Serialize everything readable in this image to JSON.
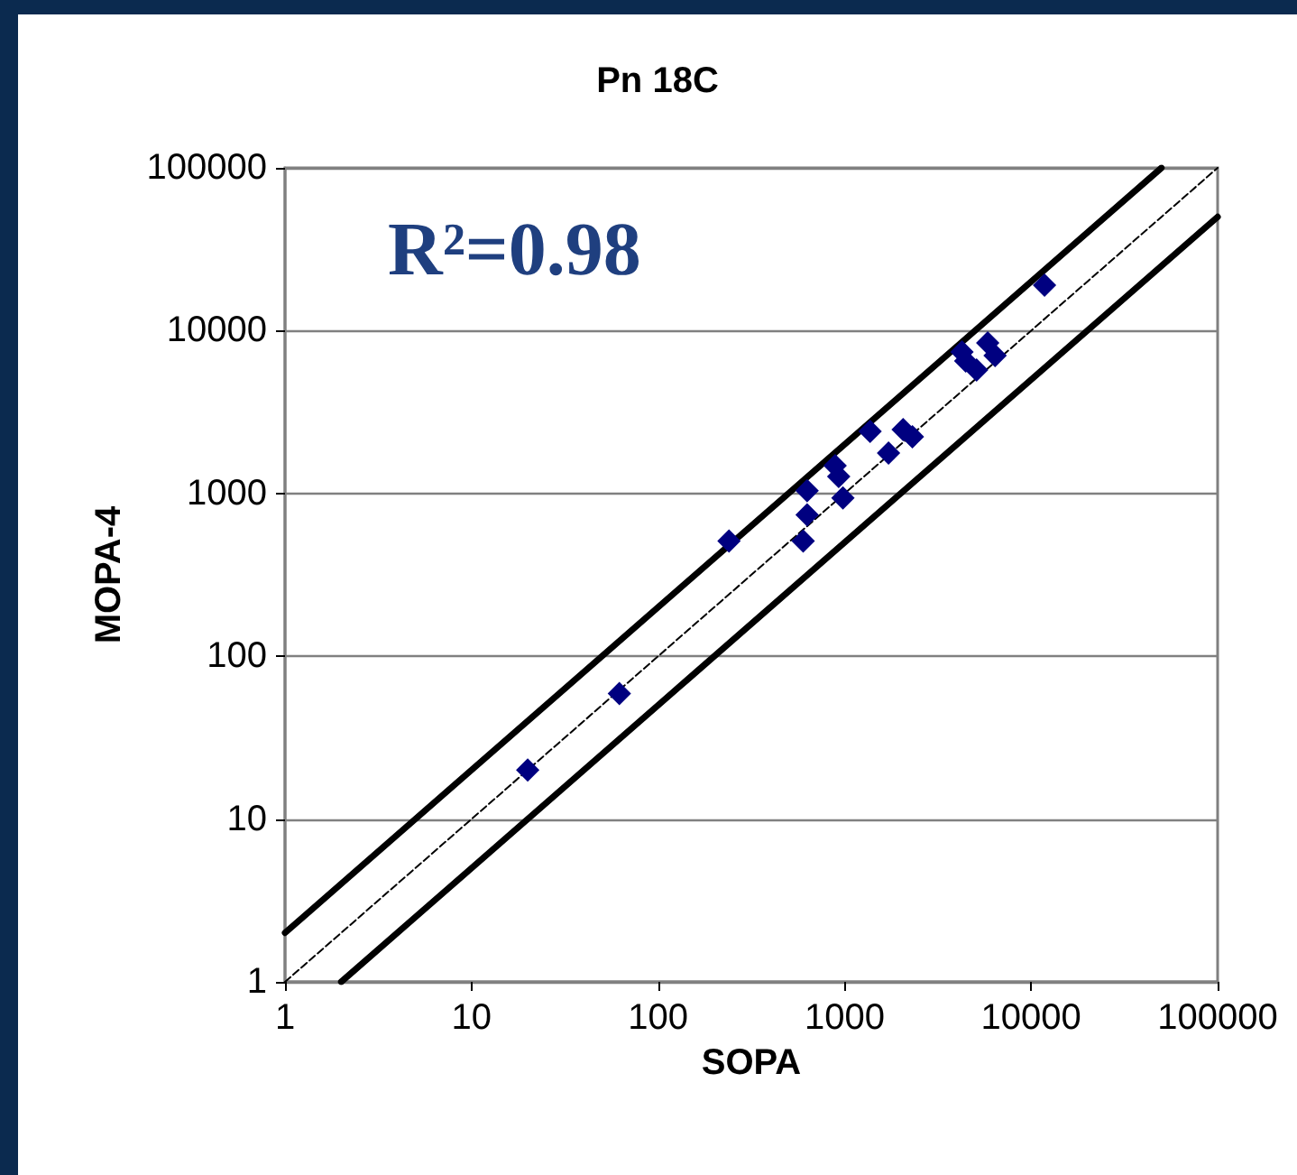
{
  "chart_data": {
    "type": "scatter",
    "title": "Pn 18C",
    "xlabel": "SOPA",
    "ylabel": "MOPA-4",
    "annotations": [
      "R²=0.98"
    ],
    "log": "xy",
    "grid": "y",
    "marker": "diamond",
    "xlim": [
      1,
      100000
    ],
    "xticks": [
      1,
      10,
      100,
      1000,
      10000,
      100000
    ],
    "ylim": [
      1,
      100000
    ],
    "yticks": [
      1,
      10,
      100,
      1000,
      10000,
      100000
    ],
    "series": [
      {
        "color": "#000080",
        "x": [
          20,
          62,
          240,
          630,
          630,
          600,
          890,
          930,
          980,
          1370,
          1720,
          2060,
          2310,
          4260,
          4460,
          5100,
          5850,
          6410,
          11800
        ],
        "values": [
          20,
          59,
          510,
          1040,
          740,
          510,
          1480,
          1270,
          940,
          2410,
          1770,
          2470,
          2230,
          7400,
          6510,
          5730,
          8410,
          7030,
          19000
        ]
      },
      {
        "type": "line",
        "color": "#000000",
        "marker": "none",
        "line_style": "solid",
        "x": [
          1,
          50000
        ],
        "values": [
          2,
          100000
        ]
      },
      {
        "type": "line",
        "color": "#000000",
        "marker": "none",
        "line_style": "dashed",
        "x": [
          1,
          100000
        ],
        "values": [
          1,
          100000
        ]
      },
      {
        "type": "line",
        "color": "#000000",
        "marker": "none",
        "line_style": "solid",
        "x": [
          2,
          100000
        ],
        "values": [
          1,
          50000
        ]
      }
    ]
  }
}
